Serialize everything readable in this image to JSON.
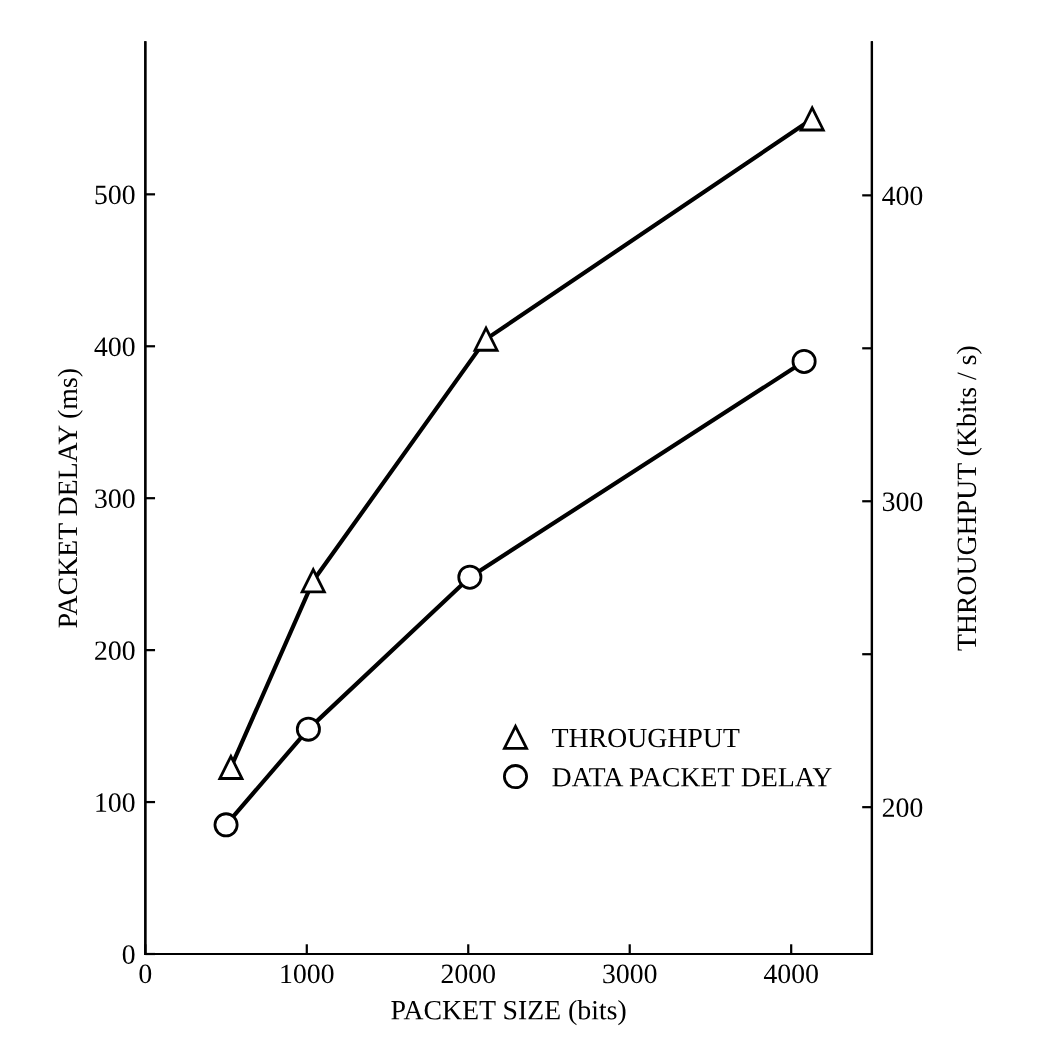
{
  "chart_data": {
    "type": "line",
    "xlabel": "PACKET SIZE (bits)",
    "ylabel": "PACKET DELAY (ms)",
    "y2label": "THROUGHPUT (Kbits / s)",
    "xlim": [
      0,
      4500
    ],
    "xticks": [
      0,
      1000,
      2000,
      3000,
      4000
    ],
    "ylim": [
      0,
      600
    ],
    "yticks": [
      0,
      100,
      200,
      300,
      400,
      500
    ],
    "y2lim": [
      152,
      450
    ],
    "y2ticks": [
      200,
      {
        "value": 250,
        "label": null
      },
      300,
      {
        "value": 350,
        "label": null
      },
      400
    ],
    "legend": "bottom right",
    "grid": false,
    "series": [
      {
        "name": "THROUGHPUT",
        "color": "#000000",
        "axis": "y2",
        "marker": "triangle",
        "x": [
          530,
          1040,
          2110,
          4130
        ],
        "values": [
          213,
          274,
          353,
          425
        ]
      },
      {
        "name": "DATA PACKET DELAY",
        "color": "#000000",
        "marker": "circle",
        "x": [
          500,
          1010,
          2010,
          4080
        ],
        "values": [
          85,
          148,
          248,
          390
        ]
      }
    ]
  }
}
